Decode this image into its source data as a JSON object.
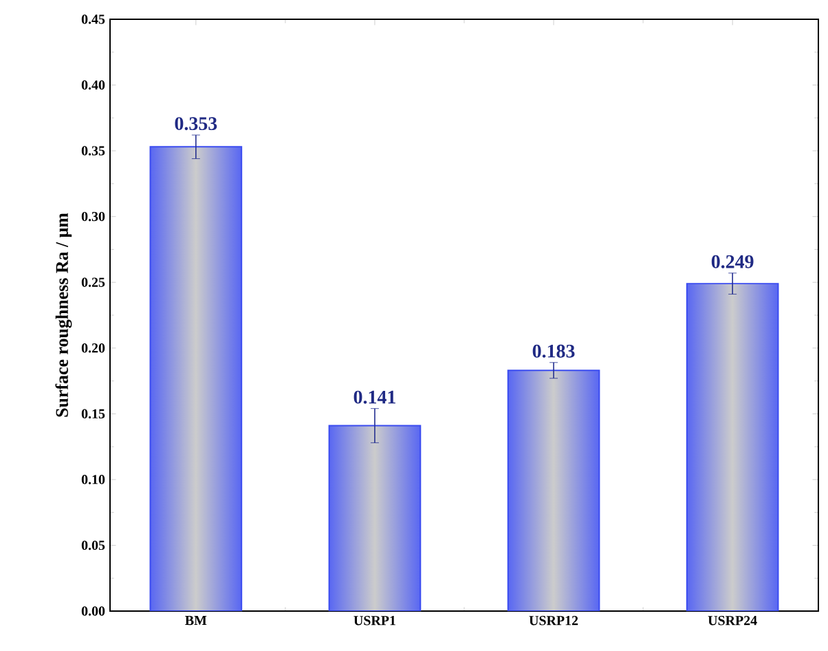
{
  "chart_data": {
    "type": "bar",
    "ylabel": "Surface roughness Ra / μm",
    "categories": [
      "BM",
      "USRP1",
      "USRP12",
      "USRP24"
    ],
    "values": [
      0.353,
      0.141,
      0.183,
      0.249
    ],
    "errors": [
      0.009,
      0.013,
      0.006,
      0.008
    ],
    "color": "#3b4cf0",
    "ylim": [
      0,
      0.45
    ],
    "yticks": [
      {
        "value": 0,
        "label": "0.00"
      },
      {
        "value": 0.05,
        "label": "0.05"
      },
      {
        "value": 0.1,
        "label": "0.10"
      },
      {
        "value": 0.15,
        "label": "0.15"
      },
      {
        "value": 0.2,
        "label": "0.20"
      },
      {
        "value": 0.25,
        "label": "0.25"
      },
      {
        "value": 0.3,
        "label": "0.30"
      },
      {
        "value": 0.35,
        "label": "0.35"
      },
      {
        "value": 0.4,
        "label": "0.40"
      },
      {
        "value": 0.45,
        "label": "0.45"
      }
    ],
    "data_labels": true
  }
}
